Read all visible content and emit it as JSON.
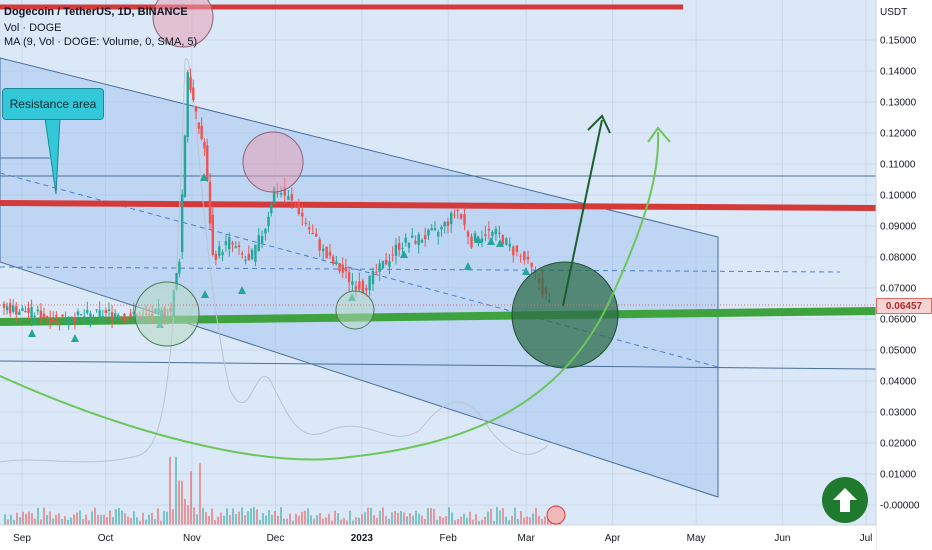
{
  "chart_data": {
    "type": "candlestick",
    "symbol_line": "Dogecoin / TetherUS, 1D, BINANCE",
    "indicators": [
      "Vol · DOGE",
      "MA (9, Vol · DOGE: Volume, 0, SMA, 5)"
    ],
    "currency": "USDT",
    "last_price": "0.06457",
    "annotation": "Resistance area",
    "y_ticks": [
      "0.15000",
      "0.14000",
      "0.13000",
      "0.12000",
      "0.11000",
      "0.10000",
      "0.09000",
      "0.08000",
      "0.07000",
      "0.06000",
      "0.05000",
      "0.04000",
      "0.03000",
      "0.02000",
      "0.01000",
      "-0.00000"
    ],
    "x_ticks": [
      {
        "label": "Sep",
        "date": "2022-09-01",
        "bold": false
      },
      {
        "label": "Oct",
        "date": "2022-10-01",
        "bold": false
      },
      {
        "label": "Nov",
        "date": "2022-11-01",
        "bold": false
      },
      {
        "label": "Dec",
        "date": "2022-12-01",
        "bold": false
      },
      {
        "label": "2023",
        "date": "2023-01-01",
        "bold": true
      },
      {
        "label": "Feb",
        "date": "2023-02-01",
        "bold": false
      },
      {
        "label": "Mar",
        "date": "2023-03-01",
        "bold": false
      },
      {
        "label": "Apr",
        "date": "2023-04-01",
        "bold": false
      },
      {
        "label": "May",
        "date": "2023-05-01",
        "bold": false
      },
      {
        "label": "Jun",
        "date": "2023-06-01",
        "bold": false
      },
      {
        "label": "Jul",
        "date": "2023-07-01",
        "bold": false
      }
    ],
    "ylim": [
      -0.004,
      0.163
    ],
    "price_path": [
      [
        "2022-08-25",
        0.064
      ],
      [
        "2022-09-05",
        0.062
      ],
      [
        "2022-09-15",
        0.06
      ],
      [
        "2022-09-25",
        0.061
      ],
      [
        "2022-10-05",
        0.062
      ],
      [
        "2022-10-15",
        0.0605
      ],
      [
        "2022-10-25",
        0.0625
      ],
      [
        "2022-10-28",
        0.08
      ],
      [
        "2022-10-31",
        0.14
      ],
      [
        "2022-11-03",
        0.125
      ],
      [
        "2022-11-06",
        0.115
      ],
      [
        "2022-11-09",
        0.08
      ],
      [
        "2022-11-15",
        0.085
      ],
      [
        "2022-11-22",
        0.078
      ],
      [
        "2022-11-28",
        0.09
      ],
      [
        "2022-12-01",
        0.102
      ],
      [
        "2022-12-05",
        0.1
      ],
      [
        "2022-12-10",
        0.095
      ],
      [
        "2022-12-15",
        0.087
      ],
      [
        "2022-12-20",
        0.08
      ],
      [
        "2022-12-28",
        0.073
      ],
      [
        "2023-01-02",
        0.07
      ],
      [
        "2023-01-08",
        0.076
      ],
      [
        "2023-01-15",
        0.084
      ],
      [
        "2023-01-22",
        0.086
      ],
      [
        "2023-01-29",
        0.088
      ],
      [
        "2023-02-05",
        0.095
      ],
      [
        "2023-02-10",
        0.085
      ],
      [
        "2023-02-15",
        0.088
      ],
      [
        "2023-02-20",
        0.087
      ],
      [
        "2023-02-25",
        0.082
      ],
      [
        "2023-03-01",
        0.079
      ],
      [
        "2023-03-05",
        0.074
      ],
      [
        "2023-03-10",
        0.065
      ]
    ],
    "horizontal_levels": [
      {
        "price": 0.099,
        "color": "#d43a3a",
        "name": "resistance"
      },
      {
        "price": 0.16,
        "color": "#d43a3a",
        "name": "top"
      },
      {
        "price": 0.062,
        "color": "#3ea33e",
        "name": "support"
      }
    ],
    "grid": true,
    "legend": "top-left"
  },
  "colors": {
    "up": "#26a69a",
    "down": "#ef5350",
    "resistance": "#d43a3a",
    "support": "#3ea33e",
    "channel": "#4a90e2"
  }
}
